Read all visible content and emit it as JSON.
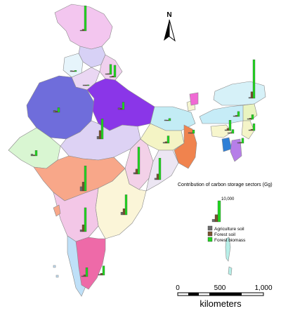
{
  "colors": {
    "agriculture_soil": "#6e6e6e",
    "forest_soil": "#7a5230",
    "forest_biomass": "#22d622"
  },
  "north_arrow": {
    "label": "N",
    "icon": "north-arrow-icon"
  },
  "legend": {
    "title": "Contribution of carbon storage sectors (Gg)",
    "reference_value": "10,000",
    "sample": {
      "agriculture_soil": 1200,
      "forest_soil": 3400,
      "forest_biomass": 10000
    },
    "items": [
      {
        "key": "agriculture_soil",
        "label": "Agriculture soil"
      },
      {
        "key": "forest_soil",
        "label": "Forest soil"
      },
      {
        "key": "forest_biomass",
        "label": "Forest biomass"
      }
    ]
  },
  "scale_bar": {
    "ticks": [
      "0",
      "500",
      "1,000"
    ],
    "unit": "kilometers"
  },
  "state_bars": [
    {
      "id": "jammu-kashmir",
      "agriculture_soil": 150,
      "forest_soil": 400,
      "forest_biomass": 6500
    },
    {
      "id": "himachal",
      "agriculture_soil": 100,
      "forest_soil": 200,
      "forest_biomass": 2600
    },
    {
      "id": "punjab",
      "agriculture_soil": 250,
      "forest_soil": 100,
      "forest_biomass": 300
    },
    {
      "id": "uttarakhand",
      "agriculture_soil": 150,
      "forest_soil": 300,
      "forest_biomass": 3100
    },
    {
      "id": "rajasthan",
      "agriculture_soil": 500,
      "forest_soil": 350,
      "forest_biomass": 1200
    },
    {
      "id": "haryana-delhi",
      "agriculture_soil": 100,
      "forest_soil": 80,
      "forest_biomass": 200
    },
    {
      "id": "uttar-pradesh",
      "agriculture_soil": 400,
      "forest_soil": 300,
      "forest_biomass": 1900
    },
    {
      "id": "gujarat",
      "agriculture_soil": 450,
      "forest_soil": 250,
      "forest_biomass": 1400
    },
    {
      "id": "madhya-pradesh",
      "agriculture_soil": 700,
      "forest_soil": 2200,
      "forest_biomass": 5200
    },
    {
      "id": "bihar",
      "agriculture_soil": 200,
      "forest_soil": 150,
      "forest_biomass": 600
    },
    {
      "id": "jharkhand",
      "agriculture_soil": 250,
      "forest_soil": 400,
      "forest_biomass": 1900
    },
    {
      "id": "west-bengal",
      "agriculture_soil": 200,
      "forest_soil": 100,
      "forest_biomass": 900
    },
    {
      "id": "chhattisgarh",
      "agriculture_soil": 400,
      "forest_soil": 1300,
      "forest_biomass": 7000
    },
    {
      "id": "odisha",
      "agriculture_soil": 400,
      "forest_soil": 1500,
      "forest_biomass": 5600
    },
    {
      "id": "maharashtra",
      "agriculture_soil": 1100,
      "forest_soil": 2300,
      "forest_biomass": 6500
    },
    {
      "id": "telangana-andhra",
      "agriculture_soil": 700,
      "forest_soil": 1600,
      "forest_biomass": 5200
    },
    {
      "id": "karnataka",
      "agriculture_soil": 500,
      "forest_soil": 1800,
      "forest_biomass": 6200
    },
    {
      "id": "kerala",
      "agriculture_soil": 150,
      "forest_soil": 450,
      "forest_biomass": 2300
    },
    {
      "id": "tamil-nadu",
      "agriculture_soil": 250,
      "forest_soil": 500,
      "forest_biomass": 2400
    },
    {
      "id": "arunachal",
      "agriculture_soil": 250,
      "forest_soil": 1700,
      "forest_biomass": 10000
    },
    {
      "id": "assam",
      "agriculture_soil": 200,
      "forest_soil": 600,
      "forest_biomass": 2700
    },
    {
      "id": "meghalaya",
      "agriculture_soil": 100,
      "forest_soil": 300,
      "forest_biomass": 1300
    },
    {
      "id": "nagaland",
      "agriculture_soil": 80,
      "forest_soil": 300,
      "forest_biomass": 1200
    },
    {
      "id": "manipur",
      "agriculture_soil": 80,
      "forest_soil": 350,
      "forest_biomass": 1800
    },
    {
      "id": "mizoram",
      "agriculture_soil": 50,
      "forest_soil": 250,
      "forest_biomass": 1300
    },
    {
      "id": "tripura",
      "agriculture_soil": 50,
      "forest_soil": 200,
      "forest_biomass": 1000
    }
  ]
}
